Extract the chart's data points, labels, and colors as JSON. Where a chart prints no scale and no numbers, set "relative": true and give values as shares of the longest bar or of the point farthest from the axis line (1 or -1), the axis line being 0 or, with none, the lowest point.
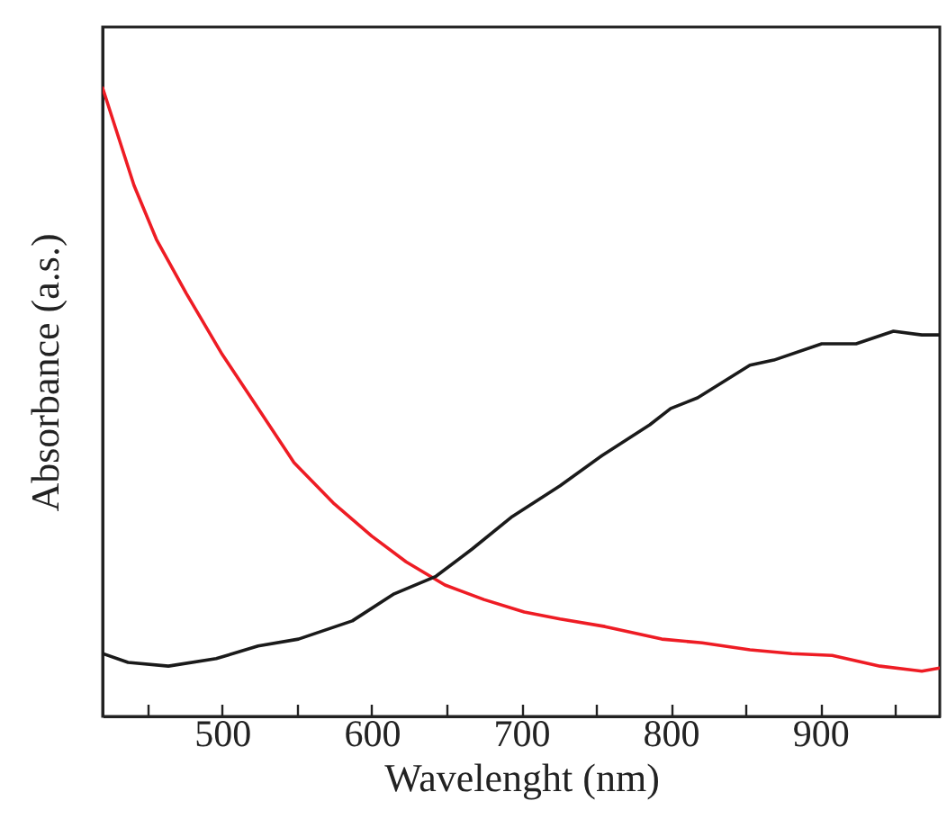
{
  "chart_data": {
    "type": "line",
    "relative": true,
    "xlabel": "Wavelenght (nm)",
    "ylabel": "Absorbance (a.s.)",
    "xlim": [
      420,
      980
    ],
    "xticks": [
      {
        "value": 450,
        "label": null
      },
      500,
      {
        "value": 550,
        "label": null
      },
      600,
      {
        "value": 650,
        "label": null
      },
      700,
      {
        "value": 750,
        "label": null
      },
      800,
      {
        "value": 850,
        "label": null
      },
      900,
      {
        "value": 950,
        "label": null
      }
    ],
    "tick_labels": "x",
    "grid": false,
    "line_style": "solid",
    "marker": "none",
    "series": [
      {
        "color": "#ee1c24",
        "x": [
          420,
          441,
          456,
          476,
          500,
          524,
          548,
          575,
          600,
          623,
          649,
          675,
          702,
          726,
          756,
          794,
          821,
          853,
          881,
          908,
          940,
          968,
          980
        ],
        "values": [
          1.0,
          0.845,
          0.759,
          0.673,
          0.576,
          0.49,
          0.404,
          0.338,
          0.287,
          0.246,
          0.209,
          0.186,
          0.166,
          0.155,
          0.143,
          0.123,
          0.117,
          0.106,
          0.1,
          0.097,
          0.08,
          0.072,
          0.077
        ]
      },
      {
        "color": "#1a1a1a",
        "x": [
          420,
          437,
          464,
          496,
          524,
          551,
          587,
          615,
          643,
          667,
          694,
          726,
          754,
          786,
          800,
          818,
          853,
          869,
          901,
          924,
          949,
          968,
          980
        ],
        "values": [
          0.1,
          0.086,
          0.08,
          0.092,
          0.112,
          0.123,
          0.152,
          0.195,
          0.223,
          0.266,
          0.318,
          0.367,
          0.415,
          0.464,
          0.49,
          0.507,
          0.559,
          0.567,
          0.593,
          0.593,
          0.613,
          0.607,
          0.607
        ]
      }
    ]
  }
}
